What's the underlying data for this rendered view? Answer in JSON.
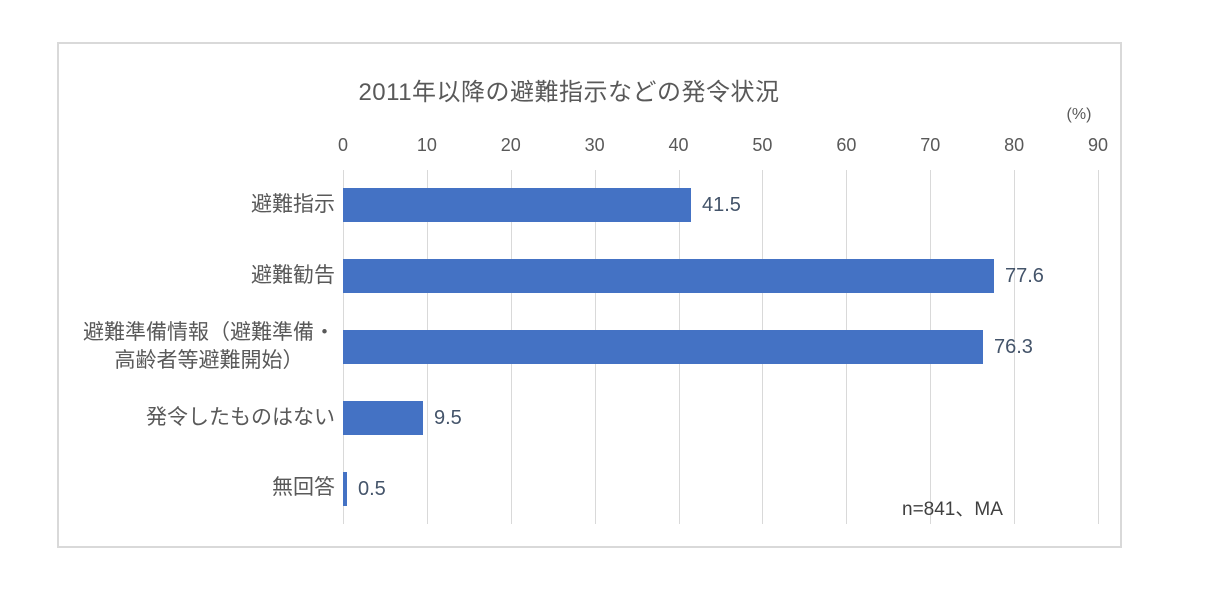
{
  "chart_data": {
    "type": "bar",
    "orientation": "horizontal",
    "title": "2011年以降の避難指示などの発令状況",
    "unit_label": "(%)",
    "categories": [
      "避難指示",
      "避難勧告",
      "避難準備情報（避難準備・\n高齢者等避難開始）",
      "発令したものはない",
      "無回答"
    ],
    "values": [
      41.5,
      77.6,
      76.3,
      9.5,
      0.5
    ],
    "x_ticks": [
      0,
      10,
      20,
      30,
      40,
      50,
      60,
      70,
      80,
      90
    ],
    "xlim": [
      0,
      90
    ],
    "grid": true,
    "legend": "none",
    "annotation": "n=841、MA",
    "colors": {
      "bar": "#4472C4",
      "gridline": "#D9D9D9",
      "axis_text": "#595959",
      "title_text": "#595959",
      "value_text": "#44546A",
      "annotation_text": "#404040",
      "border": "#D9D9D9",
      "background": "#FFFFFF"
    }
  }
}
